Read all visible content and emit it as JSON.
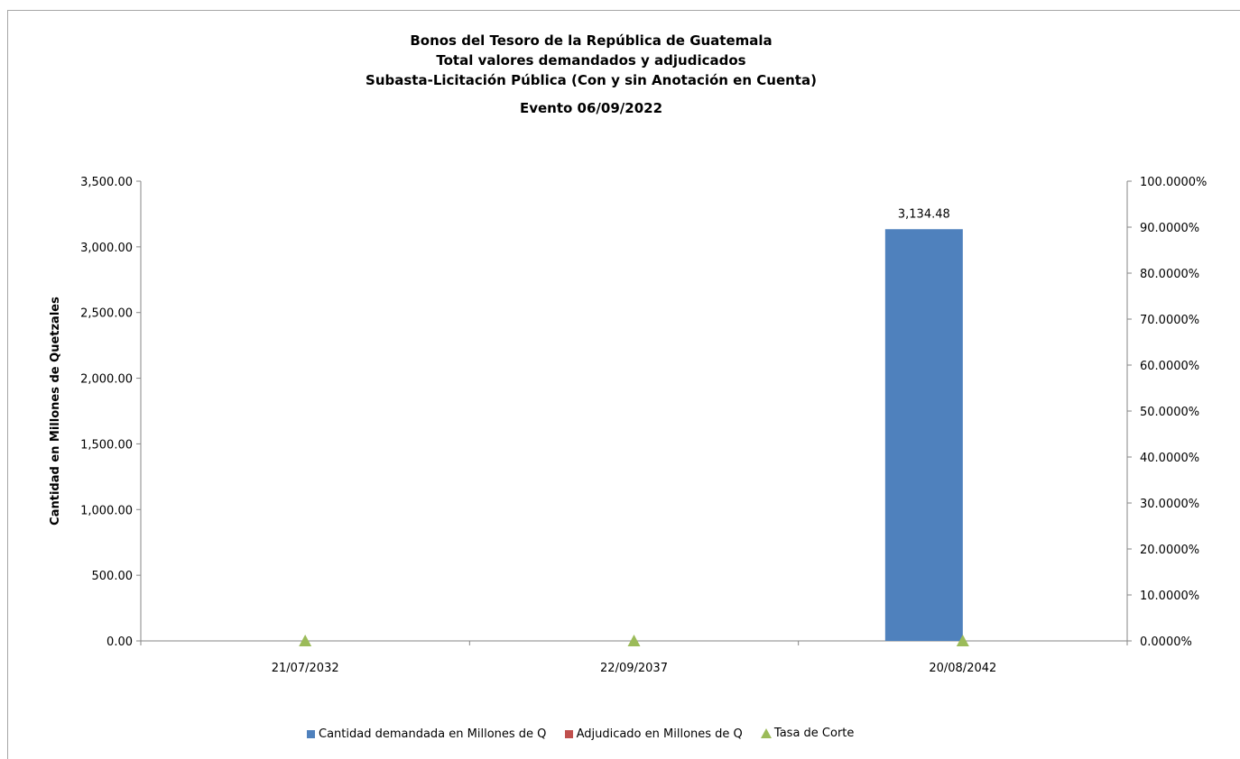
{
  "chart_data": {
    "type": "bar",
    "title": [
      "Bonos del Tesoro de la República de Guatemala",
      "Total valores demandados y adjudicados",
      "Subasta-Licitación Pública (Con y sin Anotación en Cuenta)",
      "Evento 06/09/2022"
    ],
    "ylabel": "Cantidad en Millones de Quetzales",
    "categories": [
      "21/07/2032",
      "22/09/2037",
      "20/08/2042"
    ],
    "ylim": [
      0,
      3500
    ],
    "y_ticks": [
      "0.00",
      "500.00",
      "1,000.00",
      "1,500.00",
      "2,000.00",
      "2,500.00",
      "3,000.00",
      "3,500.00"
    ],
    "y2lim": [
      0,
      1
    ],
    "y2_ticks": [
      "0.0000%",
      "10.0000%",
      "20.0000%",
      "30.0000%",
      "40.0000%",
      "50.0000%",
      "60.0000%",
      "70.0000%",
      "80.0000%",
      "90.0000%",
      "100.0000%"
    ],
    "series": [
      {
        "name": "Cantidad demandada en Millones de Q",
        "kind": "bar",
        "axis": "left",
        "color": "#4f81bd",
        "values": [
          0,
          0,
          3134.48
        ],
        "labels": [
          "",
          "",
          "3,134.48"
        ]
      },
      {
        "name": "Adjudicado en Millones de Q",
        "kind": "bar",
        "axis": "left",
        "color": "#c0504d",
        "values": [
          0,
          0,
          0
        ]
      },
      {
        "name": "Tasa de Corte",
        "kind": "marker",
        "axis": "right",
        "color": "#9bbb59",
        "values": [
          0,
          0,
          0
        ]
      }
    ],
    "legend_position": "bottom",
    "grid": false
  }
}
